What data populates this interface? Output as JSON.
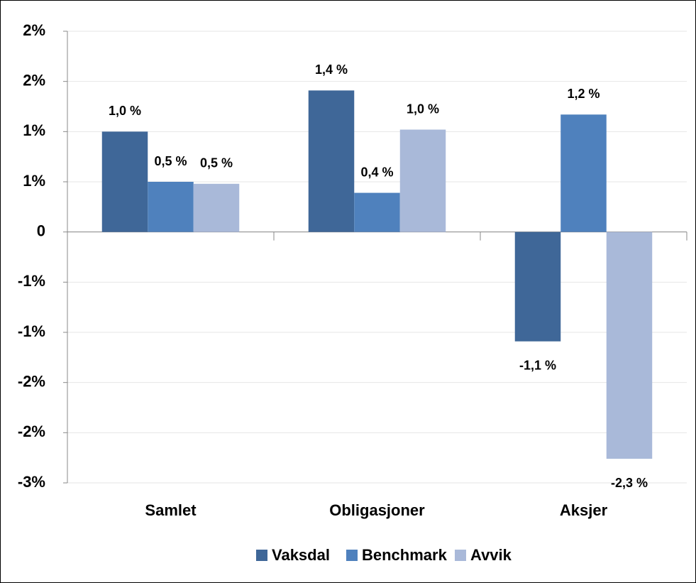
{
  "chart_data": {
    "type": "bar",
    "categories": [
      "Samlet",
      "Obligasjoner",
      "Aksjer"
    ],
    "series": [
      {
        "name": "Vaksdal",
        "color": "#3f6798",
        "values": [
          1.0,
          1.41,
          -1.09
        ],
        "value_labels": [
          "1,0 %",
          "1,4 %",
          "-1,1 %"
        ]
      },
      {
        "name": "Benchmark",
        "color": "#4f81bd",
        "values": [
          0.5,
          0.39,
          1.17
        ],
        "value_labels": [
          "0,5 %",
          "0,4 %",
          "1,2 %"
        ]
      },
      {
        "name": "Avvik",
        "color": "#a9b9d9",
        "values": [
          0.48,
          1.02,
          -2.26
        ],
        "value_labels": [
          "0,5 %",
          "1,0 %",
          "-2,3 %"
        ]
      }
    ],
    "ylim": [
      -2.5,
      2.0
    ],
    "yticks": [
      {
        "value": -2.5,
        "label": "-3%"
      },
      {
        "value": -2.0,
        "label": "-2%"
      },
      {
        "value": -1.5,
        "label": "-2%"
      },
      {
        "value": -1.0,
        "label": "-1%"
      },
      {
        "value": -0.5,
        "label": "-1%"
      },
      0,
      {
        "value": 0.5,
        "label": "1%"
      },
      {
        "value": 1.0,
        "label": "1%"
      },
      {
        "value": 1.5,
        "label": "2%"
      },
      {
        "value": 2.0,
        "label": "2%"
      }
    ],
    "grid": true,
    "legend": "bottom"
  }
}
